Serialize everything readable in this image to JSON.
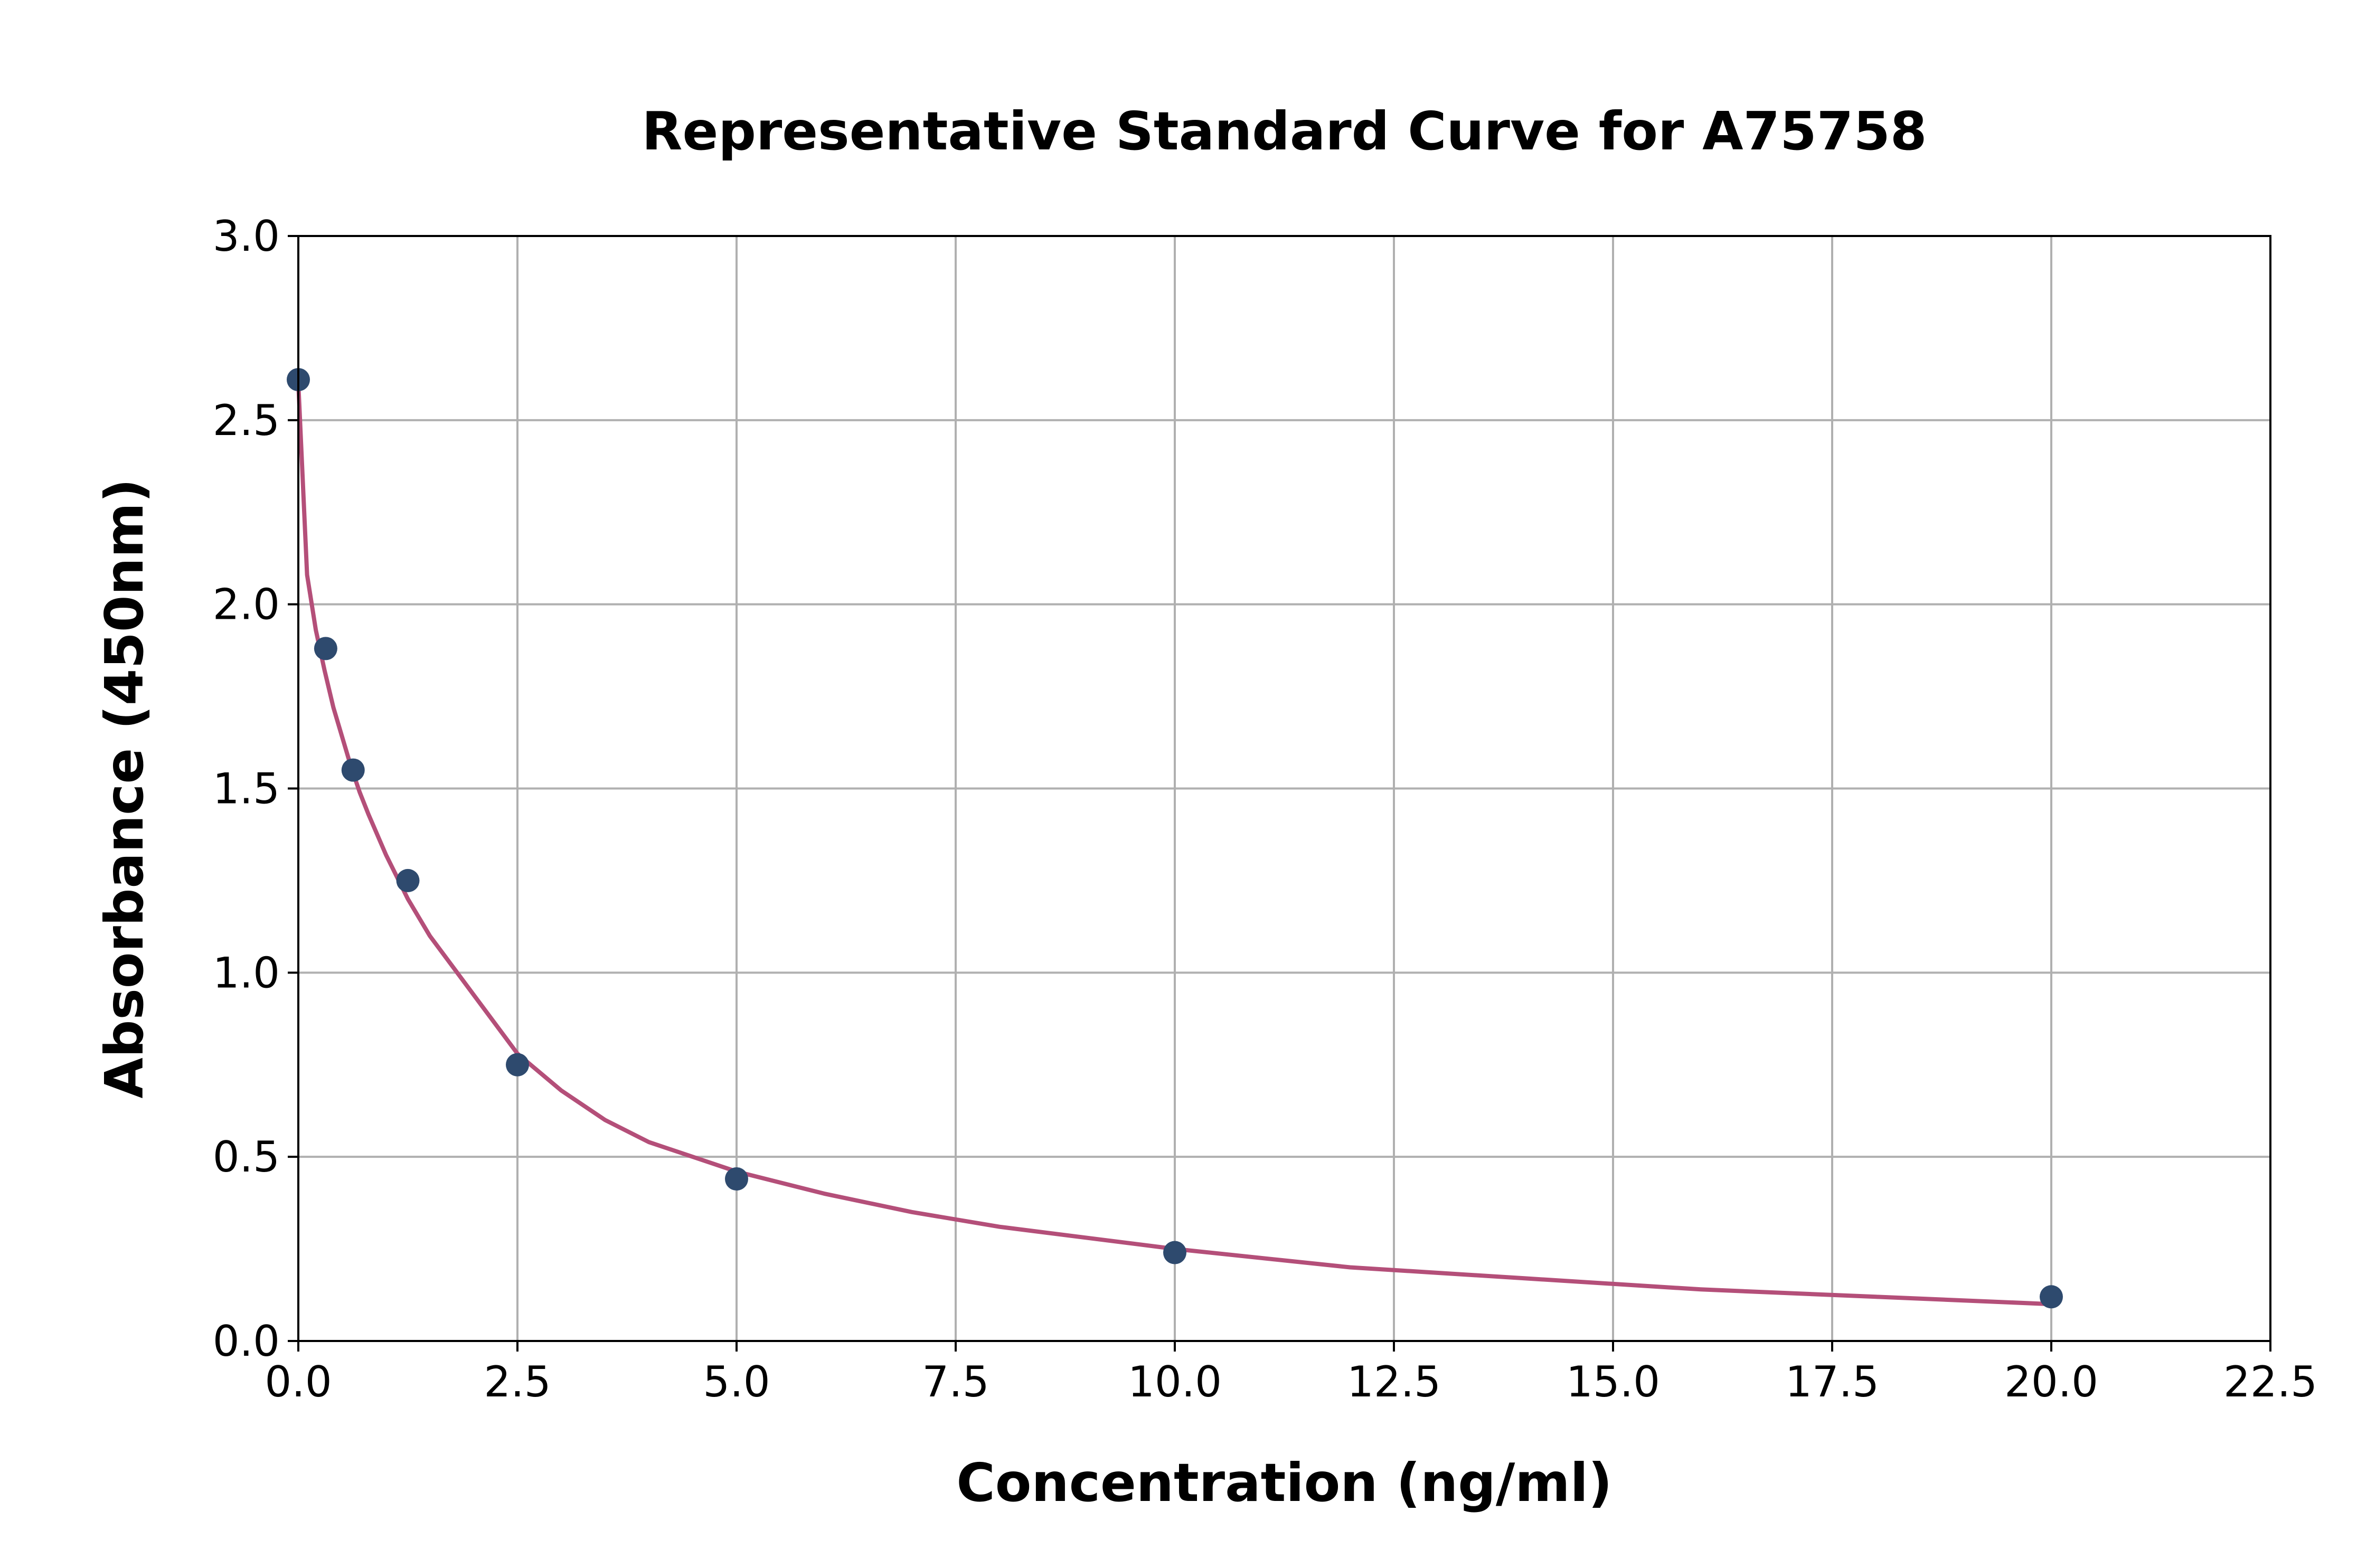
{
  "colors": {
    "point": "#2e4a6e",
    "curve": "#b44f79",
    "grid": "#b0b0b0",
    "frame": "#000000"
  },
  "chart_data": {
    "type": "scatter",
    "title": "Representative Standard Curve for A75758",
    "xlabel": "Concentration (ng/ml)",
    "ylabel": "Absorbance (450nm)",
    "xlim": [
      0,
      22.5
    ],
    "ylim": [
      0,
      3.0
    ],
    "xticks": [
      "0.0",
      "2.5",
      "5.0",
      "7.5",
      "10.0",
      "12.5",
      "15.0",
      "17.5",
      "20.0",
      "22.5"
    ],
    "yticks": [
      "0.0",
      "0.5",
      "1.0",
      "1.5",
      "2.0",
      "2.5",
      "3.0"
    ],
    "grid": true,
    "legend": "none",
    "series": [
      {
        "type": "scatter",
        "x": [
          0,
          0.3125,
          0.625,
          1.25,
          2.5,
          5,
          10,
          20
        ],
        "y": [
          2.61,
          1.88,
          1.55,
          1.25,
          0.75,
          0.44,
          0.24,
          0.12
        ]
      },
      {
        "type": "line",
        "x": [
          0,
          0.1,
          0.2,
          0.3,
          0.4,
          0.5,
          0.6,
          0.7,
          0.8,
          1.0,
          1.25,
          1.5,
          1.75,
          2.0,
          2.5,
          3.0,
          3.5,
          4.0,
          5.0,
          6.0,
          7.0,
          8.0,
          10.0,
          12.0,
          14.0,
          16.0,
          18.0,
          20.0
        ],
        "y": [
          2.6,
          2.08,
          1.93,
          1.82,
          1.72,
          1.64,
          1.56,
          1.49,
          1.43,
          1.32,
          1.2,
          1.1,
          1.02,
          0.94,
          0.78,
          0.68,
          0.6,
          0.54,
          0.46,
          0.4,
          0.35,
          0.31,
          0.25,
          0.2,
          0.17,
          0.14,
          0.12,
          0.1
        ]
      }
    ]
  }
}
